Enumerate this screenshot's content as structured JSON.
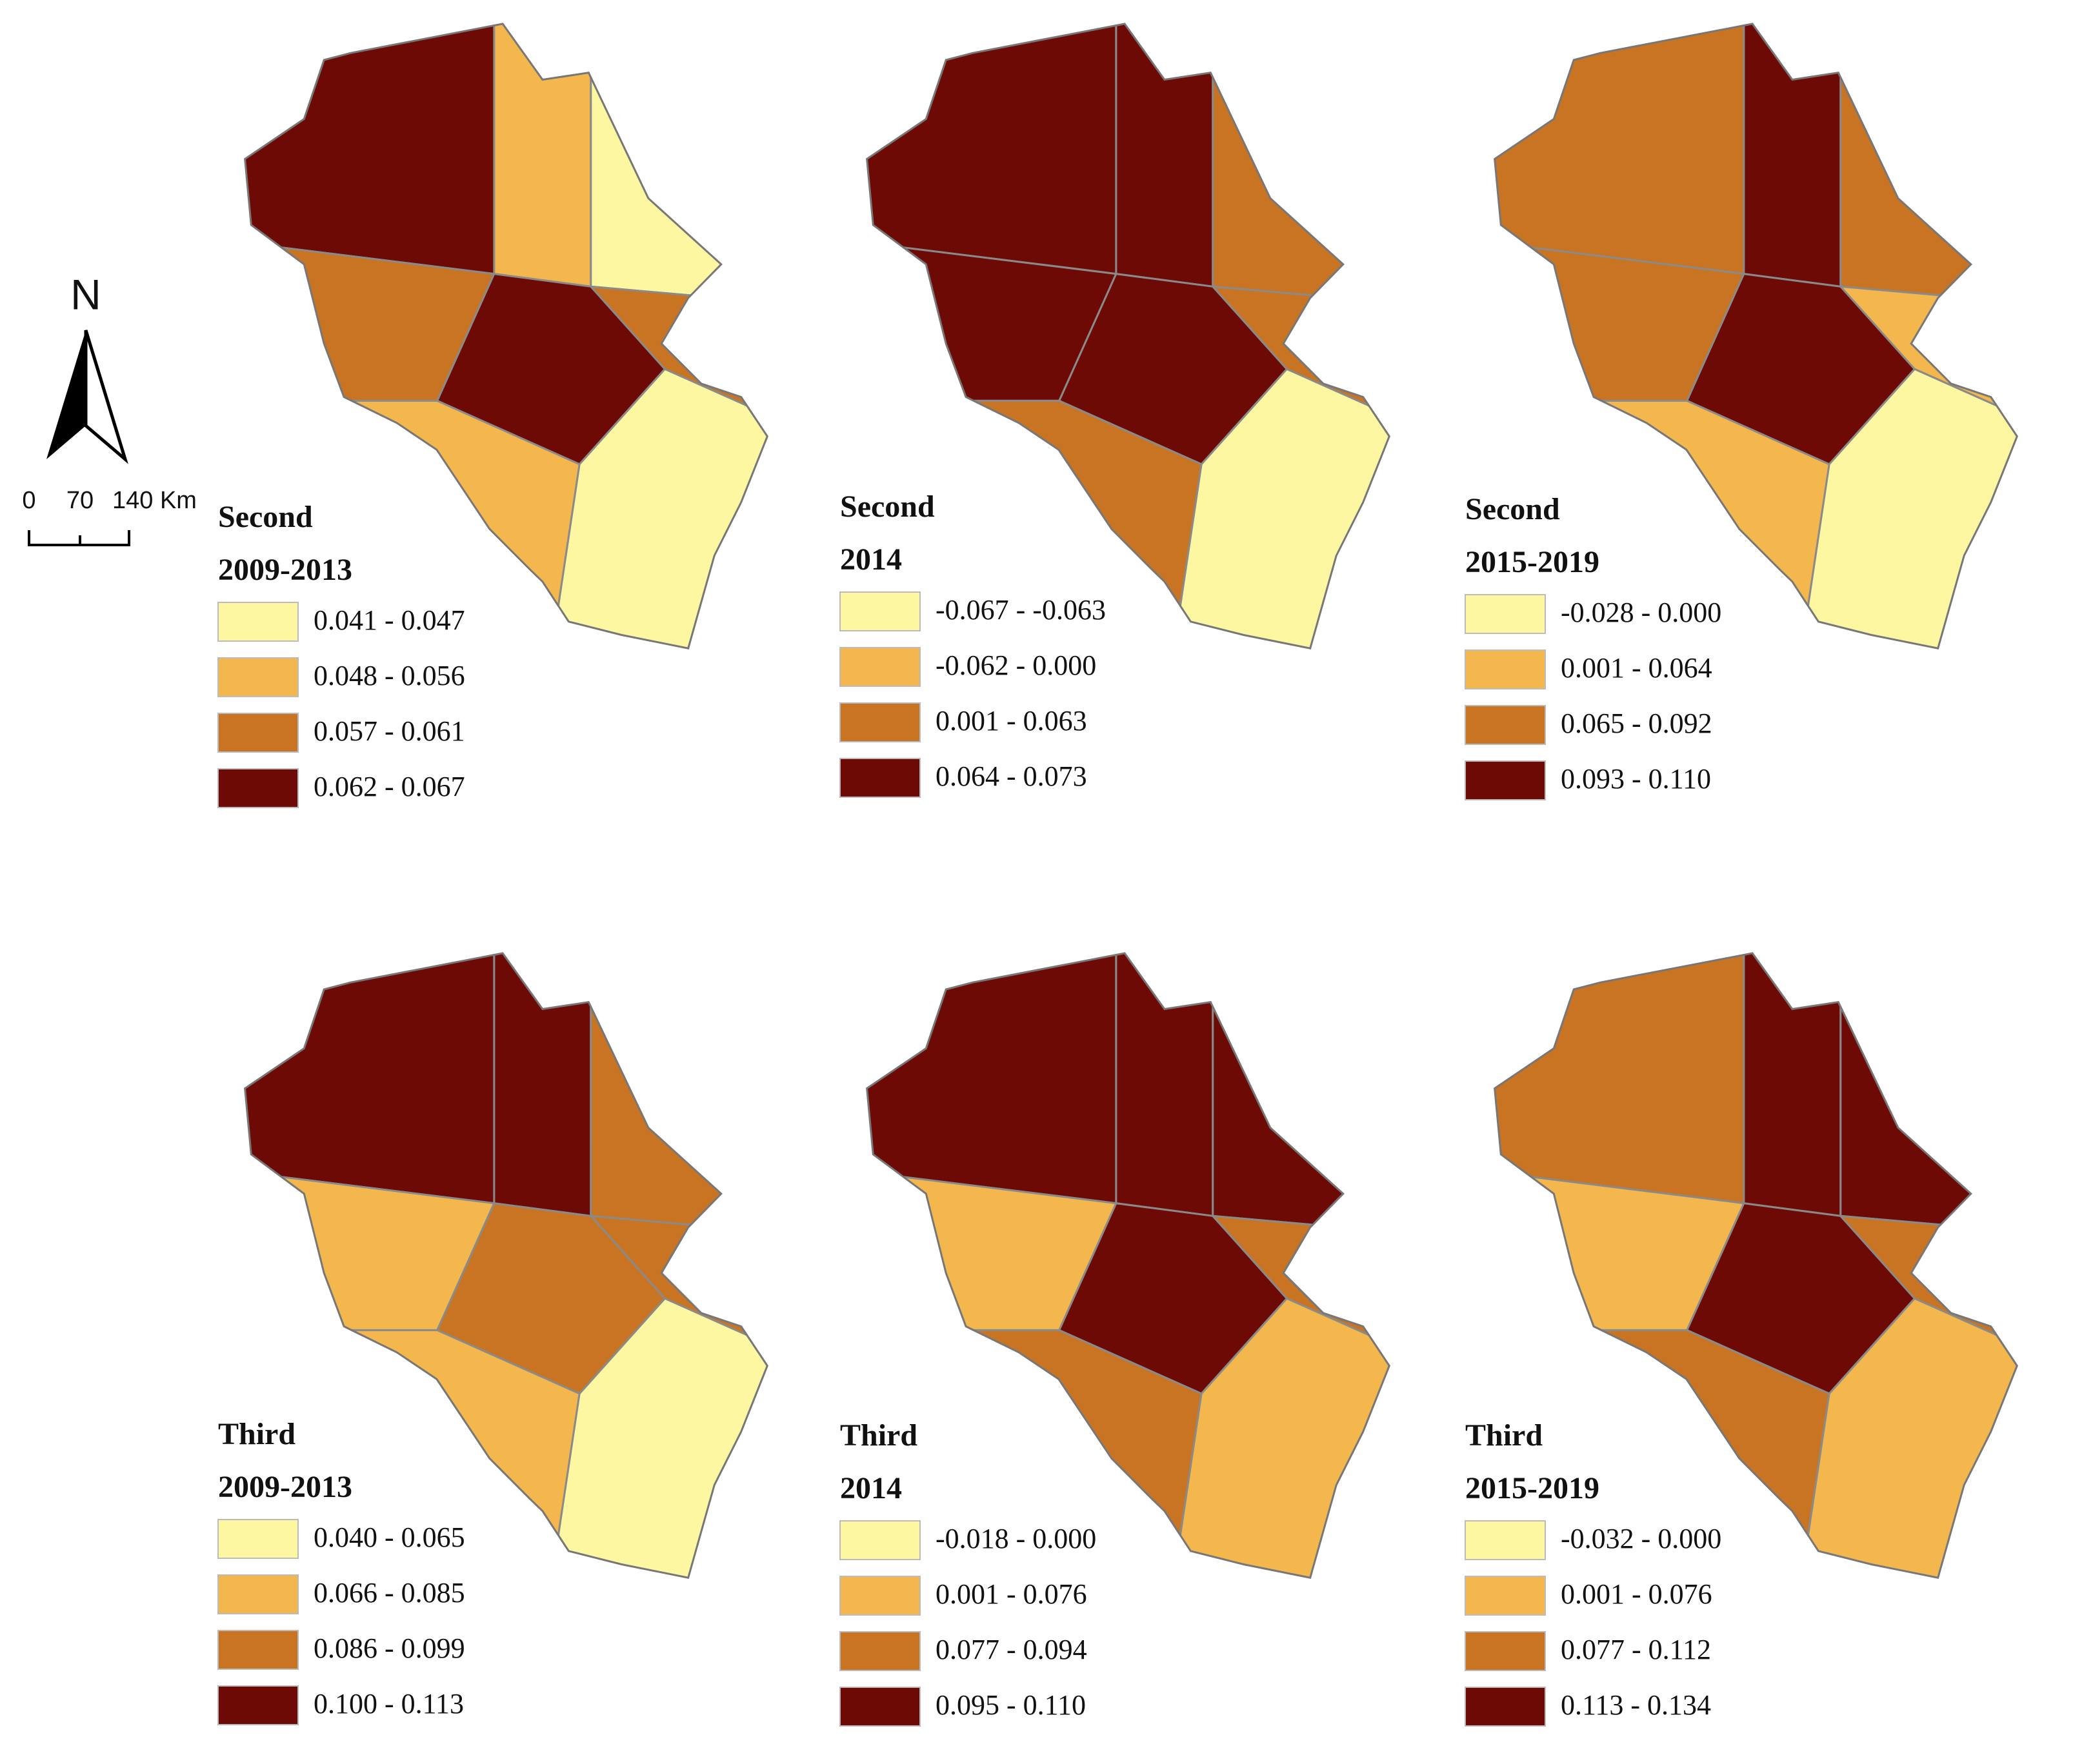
{
  "north": "N",
  "scale_bar": [
    "0",
    "70",
    "140 Km"
  ],
  "legend_colors": [
    "#fdf7a2",
    "#f3b74d",
    "#c97422",
    "#6d0a05"
  ],
  "panels": [
    {
      "title": "Second",
      "period": "2009-2013",
      "legend": [
        "0.041 - 0.047",
        "0.048 - 0.056",
        "0.057 - 0.061",
        "0.062 - 0.067"
      ]
    },
    {
      "title": "Second",
      "period": "2014",
      "legend": [
        "-0.067 - -0.063",
        "-0.062 - 0.000",
        "0.001 - 0.063",
        "0.064 - 0.073"
      ]
    },
    {
      "title": "Second",
      "period": "2015-2019",
      "legend": [
        "-0.028 - 0.000",
        "0.001 - 0.064",
        "0.065 - 0.092",
        "0.093 - 0.110"
      ]
    },
    {
      "title": "Third",
      "period": "2009-2013",
      "legend": [
        "0.040 - 0.065",
        "0.066 - 0.085",
        "0.086 - 0.099",
        "0.100 - 0.113"
      ]
    },
    {
      "title": "Third",
      "period": "2014",
      "legend": [
        "-0.018 - 0.000",
        "0.001 - 0.076",
        "0.077 - 0.094",
        "0.095 - 0.110"
      ]
    },
    {
      "title": "Third",
      "period": "2015-2019",
      "legend": [
        "-0.032 - 0.000",
        "0.001 - 0.076",
        "0.077 - 0.112",
        "0.113 - 0.134"
      ]
    }
  ]
}
